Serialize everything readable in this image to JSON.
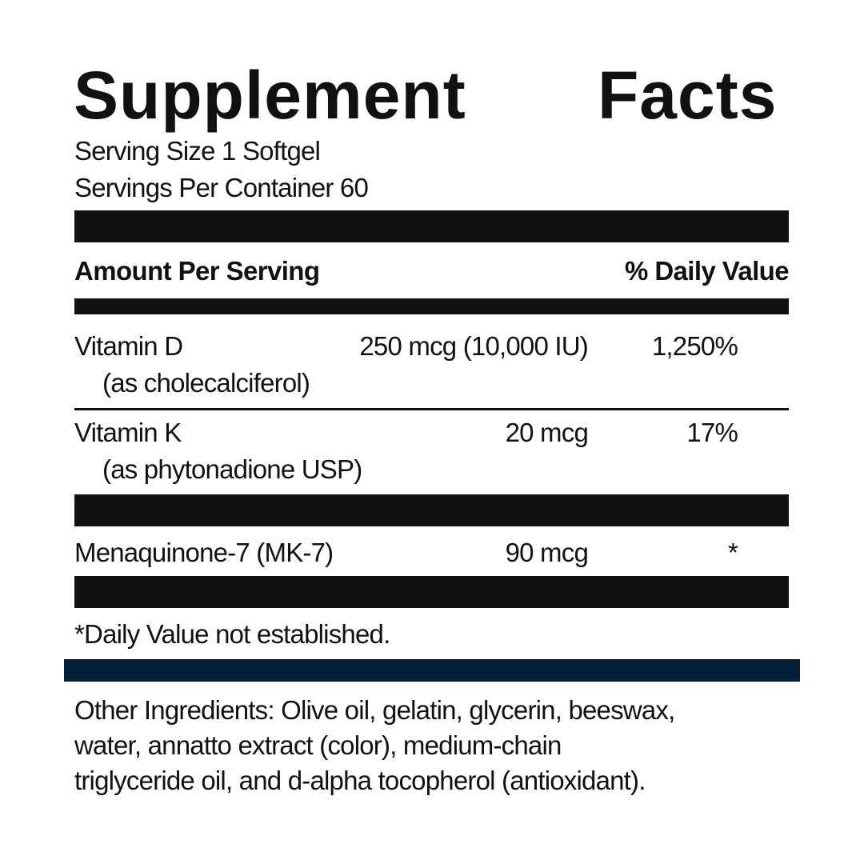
{
  "title": {
    "word1": "Supplement",
    "word2": "Facts"
  },
  "serving": {
    "size": "Serving Size 1 Softgel",
    "per_container": "Servings Per Container 60"
  },
  "header": {
    "amount": "Amount Per Serving",
    "daily_value": "% Daily Value"
  },
  "nutrients": [
    {
      "name": "Vitamin D",
      "source": "(as cholecalciferol)",
      "amount": "250 mcg (10,000 IU)",
      "dv": "1,250%"
    },
    {
      "name": "Vitamin K",
      "source": "(as phytonadione USP)",
      "amount": "20 mcg",
      "dv": "17%"
    },
    {
      "name": "Menaquinone-7 (MK-7)",
      "amount": "90 mcg",
      "dv": "*"
    }
  ],
  "footnote": "*Daily Value not established.",
  "other_ingredients": {
    "lines": [
      "Other Ingredients: Olive oil, gelatin, glycerin, beeswax,",
      "water, annatto extract (color), medium-chain",
      "triglyceride oil, and d-alpha tocopherol (antioxidant)."
    ]
  },
  "colors": {
    "bar": "#111111",
    "accent_bar": "#02203a"
  }
}
